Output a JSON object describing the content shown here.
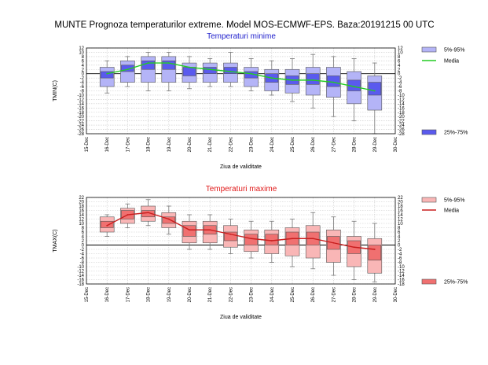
{
  "page": {
    "title": "MUNTE  Prognoza temperaturilor extreme.  Model MOS-ECMWF-EPS. Baza:20191215 00 UTC"
  },
  "colors": {
    "tmin_box_inner": "#5a5aee",
    "tmin_box_outer": "#b4b4f7",
    "tmin_median_line": "#22cc22",
    "tmin_title": "#2020cc",
    "tmax_box_inner": "#f07070",
    "tmax_box_outer": "#f9b6b6",
    "tmax_median_line": "#c81e1e",
    "tmax_title": "#e01b1b",
    "edge": "#555555",
    "whisker": "#777777",
    "grid": "#c8c8c8",
    "zero_line": "#000000"
  },
  "chart_data": [
    {
      "type": "boxplot",
      "id": "tmin",
      "title": "Temperaturi minime",
      "ylabel": "TMIN(C)",
      "xlabel": "Ziua de validitate",
      "ylim": [
        -28,
        12
      ],
      "yticks": [
        12,
        10,
        8,
        6,
        4,
        2,
        0,
        -2,
        -4,
        -6,
        -8,
        -10,
        -12,
        -14,
        -16,
        -18,
        -20,
        -22,
        -24,
        -26,
        -28
      ],
      "xticks": [
        "15-Dec",
        "16-Dec",
        "17-Dec",
        "18-Dec",
        "19-Dec",
        "20-Dec",
        "21-Dec",
        "22-Dec",
        "23-Dec",
        "24-Dec",
        "25-Dec",
        "26-Dec",
        "27-Dec",
        "28-Dec",
        "29-Dec",
        "30-Dec"
      ],
      "categories": [
        "16-Dec",
        "17-Dec",
        "18-Dec",
        "19-Dec",
        "20-Dec",
        "21-Dec",
        "22-Dec",
        "23-Dec",
        "24-Dec",
        "25-Dec",
        "26-Dec",
        "27-Dec",
        "28-Dec",
        "29-Dec"
      ],
      "series": [
        {
          "name": "min",
          "values": [
            -9,
            -6,
            -8,
            -8,
            -7,
            -6,
            -6,
            -8,
            -10,
            -13,
            -16,
            -20,
            -22,
            -28
          ]
        },
        {
          "name": "p5",
          "values": [
            -6,
            -4,
            -4,
            -4,
            -4,
            -4,
            -4,
            -6,
            -8,
            -9,
            -10,
            -11,
            -14,
            -17
          ]
        },
        {
          "name": "p25",
          "values": [
            -2,
            1,
            2,
            2,
            -1,
            0,
            0,
            -2,
            -4,
            -5,
            -5,
            -6,
            -8,
            -10
          ]
        },
        {
          "name": "median",
          "values": [
            0,
            2,
            5,
            5,
            3,
            2,
            1,
            0,
            -2,
            -3,
            -3,
            -4,
            -6,
            -8
          ]
        },
        {
          "name": "p75",
          "values": [
            1,
            4,
            6,
            6,
            3,
            3,
            3,
            1,
            0,
            -1,
            0,
            -1,
            -3,
            -4
          ]
        },
        {
          "name": "p95",
          "values": [
            3,
            6,
            8,
            8,
            5,
            5,
            5,
            3,
            2,
            2,
            3,
            3,
            1,
            -1
          ]
        },
        {
          "name": "max",
          "values": [
            6,
            8,
            10,
            10,
            8,
            7,
            10,
            7,
            6,
            7,
            9,
            8,
            7,
            5
          ]
        }
      ],
      "legend": [
        {
          "label": "5%-95%",
          "kind": "outer-box"
        },
        {
          "label": "Media",
          "kind": "median-line"
        },
        {
          "label": "25%-75%",
          "kind": "inner-box"
        }
      ]
    },
    {
      "type": "boxplot",
      "id": "tmax",
      "title": "Temperaturi maxime",
      "ylabel": "TMAX(C)",
      "xlabel": "Ziua de validitate",
      "ylim": [
        -18,
        22
      ],
      "yticks": [
        22,
        20,
        18,
        16,
        14,
        12,
        10,
        8,
        6,
        4,
        2,
        0,
        -2,
        -4,
        -6,
        -8,
        -10,
        -12,
        -14,
        -16,
        -18
      ],
      "xticks": [
        "15-Dec",
        "16-Dec",
        "17-Dec",
        "18-Dec",
        "19-Dec",
        "20-Dec",
        "21-Dec",
        "22-Dec",
        "23-Dec",
        "24-Dec",
        "25-Dec",
        "26-Dec",
        "27-Dec",
        "28-Dec",
        "29-Dec",
        "30-Dec"
      ],
      "categories": [
        "16-Dec",
        "17-Dec",
        "18-Dec",
        "19-Dec",
        "20-Dec",
        "21-Dec",
        "22-Dec",
        "23-Dec",
        "24-Dec",
        "25-Dec",
        "26-Dec",
        "27-Dec",
        "28-Dec",
        "29-Dec"
      ],
      "series": [
        {
          "name": "min",
          "values": [
            4,
            8,
            9,
            5,
            -2,
            -2,
            -4,
            -6,
            -8,
            -10,
            -11,
            -14,
            -16,
            -17
          ]
        },
        {
          "name": "p5",
          "values": [
            6,
            10,
            11,
            8,
            1,
            1,
            -1,
            -3,
            -4,
            -5,
            -6,
            -8,
            -10,
            -13
          ]
        },
        {
          "name": "p25",
          "values": [
            8,
            12,
            13,
            10,
            4,
            5,
            2,
            0,
            0,
            0,
            0,
            -2,
            -4,
            -7
          ]
        },
        {
          "name": "median",
          "values": [
            9,
            14,
            15,
            12,
            7,
            7,
            5,
            3,
            2,
            3,
            3,
            1,
            -1,
            -2
          ]
        },
        {
          "name": "p75",
          "values": [
            11,
            16,
            16,
            13,
            9,
            9,
            6,
            5,
            5,
            6,
            6,
            4,
            2,
            0
          ]
        },
        {
          "name": "p95",
          "values": [
            13,
            17,
            18,
            15,
            11,
            11,
            9,
            7,
            7,
            8,
            9,
            7,
            4,
            3
          ]
        },
        {
          "name": "max",
          "values": [
            14,
            19,
            21,
            18,
            14,
            14,
            12,
            11,
            11,
            12,
            15,
            13,
            11,
            10
          ]
        }
      ],
      "legend": [
        {
          "label": "5%-95%",
          "kind": "outer-box"
        },
        {
          "label": "Media",
          "kind": "median-line"
        },
        {
          "label": "25%-75%",
          "kind": "inner-box"
        }
      ]
    }
  ]
}
